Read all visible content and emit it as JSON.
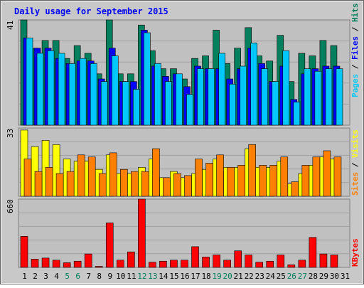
{
  "title": "Daily usage for September 2015",
  "legend": {
    "pages": "Pages",
    "files": "Files",
    "hits": "Hits",
    "sites": "Sites",
    "visits": "Visits",
    "kbytes": "KBytes",
    "sep": " / "
  },
  "colors": {
    "background": "#ffffff",
    "plot_bg": "#c0c0c0",
    "grid": "#a0a0a0",
    "title": "#0000ff",
    "hits": "#00805c",
    "files": "#0000ff",
    "pages": "#00c8ff",
    "visits": "#ffff00",
    "sites": "#ff8000",
    "kbytes": "#ff0000",
    "weekday_label": "#000000",
    "weekend_label": "#00805c"
  },
  "chart_data": [
    {
      "type": "bar",
      "panel": "hits_files_pages",
      "scale_max_label": "41",
      "ylim": [
        0,
        41
      ],
      "grid": true,
      "categories": [
        "1",
        "2",
        "3",
        "4",
        "5",
        "6",
        "7",
        "8",
        "9",
        "10",
        "11",
        "12",
        "13",
        "14",
        "15",
        "16",
        "17",
        "18",
        "19",
        "20",
        "21",
        "22",
        "23",
        "24",
        "25",
        "26",
        "27",
        "28",
        "29",
        "30",
        "31"
      ],
      "series": [
        {
          "name": "Hits",
          "values": [
            41,
            30,
            33,
            33,
            26,
            31,
            28,
            20,
            41,
            20,
            20,
            39,
            29,
            22,
            22,
            18,
            26,
            27,
            37,
            24,
            30,
            38,
            27,
            25,
            35,
            17,
            28,
            27,
            33,
            31,
            0
          ]
        },
        {
          "name": "Files",
          "values": [
            34,
            30,
            30,
            26,
            24,
            25,
            25,
            18,
            30,
            17,
            17,
            37,
            23,
            19,
            20,
            15,
            23,
            22,
            22,
            18,
            22,
            30,
            24,
            17,
            23,
            10,
            20,
            22,
            23,
            23,
            0
          ]
        },
        {
          "name": "Pages",
          "values": [
            34,
            28,
            29,
            28,
            24,
            26,
            24,
            17,
            27,
            17,
            14,
            36,
            24,
            17,
            20,
            12,
            22,
            22,
            28,
            16,
            23,
            32,
            22,
            17,
            29,
            9,
            22,
            21,
            22,
            22,
            0
          ]
        }
      ]
    },
    {
      "type": "bar",
      "panel": "visits_sites",
      "scale_max_label": "33",
      "ylim": [
        0,
        33
      ],
      "grid": true,
      "categories": [
        "1",
        "2",
        "3",
        "4",
        "5",
        "6",
        "7",
        "8",
        "9",
        "10",
        "11",
        "12",
        "13",
        "14",
        "15",
        "16",
        "17",
        "18",
        "19",
        "20",
        "21",
        "22",
        "23",
        "24",
        "25",
        "26",
        "27",
        "28",
        "29",
        "30",
        "31"
      ],
      "series": [
        {
          "name": "Visits",
          "values": [
            32,
            24,
            27,
            25,
            18,
            17,
            17,
            13,
            20,
            11,
            11,
            14,
            18,
            9,
            12,
            9,
            11,
            13,
            18,
            14,
            14,
            23,
            14,
            14,
            17,
            6,
            11,
            15,
            19,
            18,
            0
          ]
        },
        {
          "name": "Sites",
          "values": [
            18,
            12,
            14,
            11,
            12,
            20,
            19,
            11,
            21,
            13,
            12,
            12,
            23,
            9,
            11,
            10,
            18,
            16,
            20,
            14,
            15,
            25,
            15,
            15,
            19,
            7,
            15,
            19,
            22,
            19,
            0
          ]
        }
      ]
    },
    {
      "type": "bar",
      "panel": "kbytes",
      "scale_max_label": "660",
      "ylim": [
        0,
        660
      ],
      "grid": true,
      "categories": [
        "1",
        "2",
        "3",
        "4",
        "5",
        "6",
        "7",
        "8",
        "9",
        "10",
        "11",
        "12",
        "13",
        "14",
        "15",
        "16",
        "17",
        "18",
        "19",
        "20",
        "21",
        "22",
        "23",
        "24",
        "25",
        "26",
        "27",
        "28",
        "29",
        "30",
        "31"
      ],
      "weekend_days": [
        "5",
        "6",
        "12",
        "13",
        "19",
        "20",
        "26",
        "27"
      ],
      "series": [
        {
          "name": "KBytes",
          "values": [
            300,
            80,
            90,
            70,
            45,
            60,
            130,
            10,
            430,
            70,
            150,
            660,
            50,
            60,
            70,
            70,
            200,
            100,
            120,
            70,
            160,
            120,
            50,
            60,
            120,
            25,
            70,
            290,
            130,
            120,
            0
          ]
        }
      ]
    }
  ]
}
